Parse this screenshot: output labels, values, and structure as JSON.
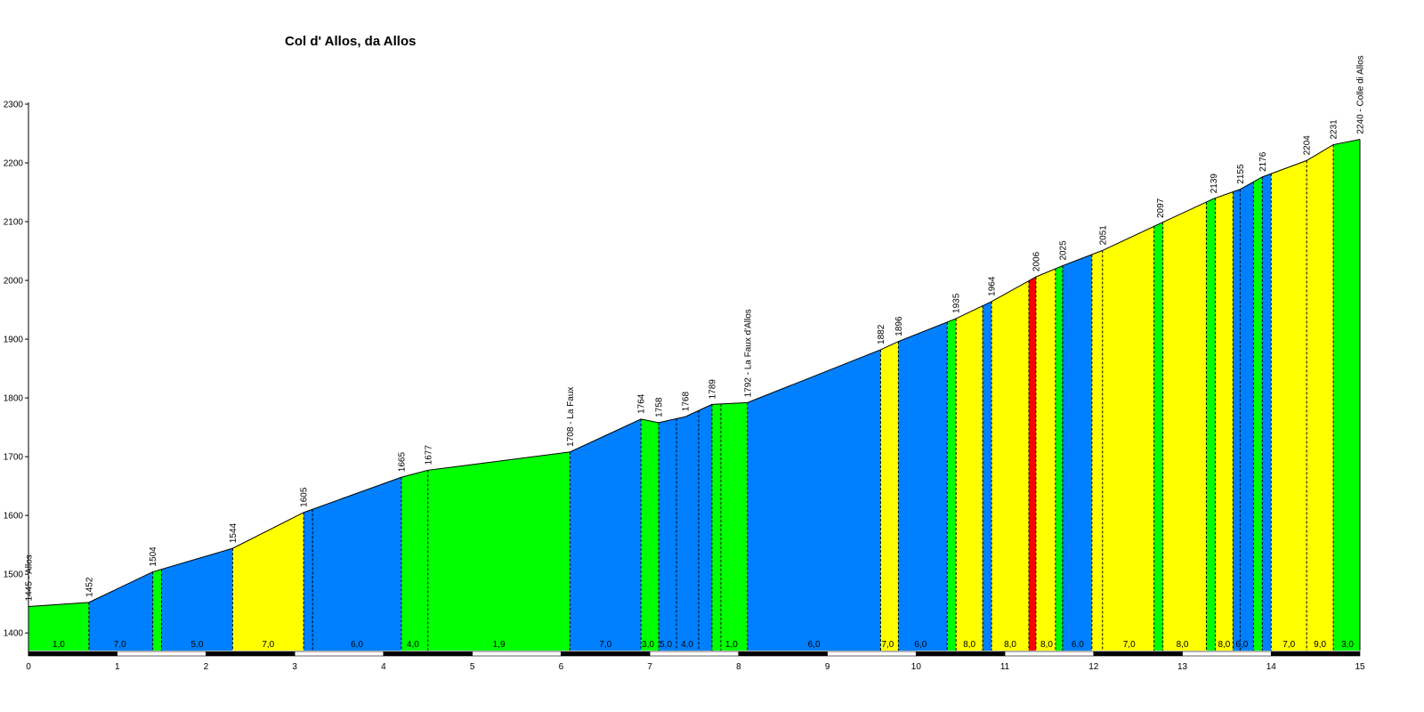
{
  "chart_data": {
    "type": "area",
    "title": "Col d' Allos, da Allos",
    "xlim": [
      0,
      15
    ],
    "ylim": [
      1370,
      2300
    ],
    "y_ticks": [
      1400,
      1500,
      1600,
      1700,
      1800,
      1900,
      2000,
      2100,
      2200,
      2300
    ],
    "x_ticks": [
      0,
      1,
      2,
      3,
      4,
      5,
      6,
      7,
      8,
      9,
      10,
      11,
      12,
      13,
      14,
      15
    ],
    "grid": false,
    "gradient_colors": {
      "low": "#00ff00",
      "medium": "#0080ff",
      "high": "#ffff00",
      "very_high": "#ff0000"
    },
    "profile_points": [
      {
        "km": 0.0,
        "alt": 1445
      },
      {
        "km": 0.68,
        "alt": 1452
      },
      {
        "km": 1.4,
        "alt": 1504
      },
      {
        "km": 2.3,
        "alt": 1544
      },
      {
        "km": 3.1,
        "alt": 1605
      },
      {
        "km": 4.2,
        "alt": 1665
      },
      {
        "km": 4.5,
        "alt": 1677
      },
      {
        "km": 6.1,
        "alt": 1708
      },
      {
        "km": 6.9,
        "alt": 1764
      },
      {
        "km": 7.1,
        "alt": 1758
      },
      {
        "km": 7.4,
        "alt": 1768
      },
      {
        "km": 7.7,
        "alt": 1789
      },
      {
        "km": 8.1,
        "alt": 1792
      },
      {
        "km": 9.6,
        "alt": 1882
      },
      {
        "km": 9.8,
        "alt": 1896
      },
      {
        "km": 10.45,
        "alt": 1935
      },
      {
        "km": 10.85,
        "alt": 1964
      },
      {
        "km": 11.35,
        "alt": 2006
      },
      {
        "km": 11.65,
        "alt": 2025
      },
      {
        "km": 12.1,
        "alt": 2051
      },
      {
        "km": 12.75,
        "alt": 2097
      },
      {
        "km": 13.35,
        "alt": 2139
      },
      {
        "km": 13.65,
        "alt": 2155
      },
      {
        "km": 13.9,
        "alt": 2176
      },
      {
        "km": 14.4,
        "alt": 2204
      },
      {
        "km": 14.7,
        "alt": 2231
      },
      {
        "km": 15.0,
        "alt": 2240
      }
    ],
    "point_labels": [
      {
        "km": 0.0,
        "text": "1445 - Allos"
      },
      {
        "km": 0.68,
        "text": "1452"
      },
      {
        "km": 1.4,
        "text": "1504"
      },
      {
        "km": 2.3,
        "text": "1544"
      },
      {
        "km": 3.1,
        "text": "1605"
      },
      {
        "km": 4.2,
        "text": "1665"
      },
      {
        "km": 4.5,
        "text": "1677"
      },
      {
        "km": 6.1,
        "text": "1708 - La Faux"
      },
      {
        "km": 6.9,
        "text": "1764"
      },
      {
        "km": 7.1,
        "text": "1758"
      },
      {
        "km": 7.4,
        "text": "1768"
      },
      {
        "km": 7.7,
        "text": "1789"
      },
      {
        "km": 8.1,
        "text": "1792 - La Faux d'Allos"
      },
      {
        "km": 9.6,
        "text": "1882"
      },
      {
        "km": 9.8,
        "text": "1896"
      },
      {
        "km": 10.45,
        "text": "1935"
      },
      {
        "km": 10.85,
        "text": "1964"
      },
      {
        "km": 11.35,
        "text": "2006"
      },
      {
        "km": 11.65,
        "text": "2025"
      },
      {
        "km": 12.1,
        "text": "2051"
      },
      {
        "km": 12.75,
        "text": "2097"
      },
      {
        "km": 13.35,
        "text": "2139"
      },
      {
        "km": 13.65,
        "text": "2155"
      },
      {
        "km": 13.9,
        "text": "2176"
      },
      {
        "km": 14.4,
        "text": "2204"
      },
      {
        "km": 14.7,
        "text": "2231"
      },
      {
        "km": 15.0,
        "text": "2240 - Colle di Allos"
      }
    ],
    "segments": [
      {
        "from": 0.0,
        "to": 0.68,
        "color": "green",
        "grade_label": "1,0",
        "grade_label_km": 0.34
      },
      {
        "from": 0.68,
        "to": 1.4,
        "color": "blue",
        "grade_label": "7,0",
        "grade_label_km": 1.03
      },
      {
        "from": 1.4,
        "to": 1.5,
        "color": "green",
        "grade_label": "",
        "grade_label_km": null
      },
      {
        "from": 1.5,
        "to": 2.3,
        "color": "blue",
        "grade_label": "5,0",
        "grade_label_km": 1.9
      },
      {
        "from": 2.3,
        "to": 3.1,
        "color": "yellow",
        "grade_label": "7,0",
        "grade_label_km": 2.7
      },
      {
        "from": 3.1,
        "to": 4.2,
        "color": "blue",
        "grade_label": "6,0",
        "grade_label_km": 3.7
      },
      {
        "from": 4.2,
        "to": 4.5,
        "color": "green",
        "grade_label": "4,0",
        "grade_label_km": 4.33
      },
      {
        "from": 4.5,
        "to": 6.1,
        "color": "green",
        "grade_label": "1,9",
        "grade_label_km": 5.3
      },
      {
        "from": 6.1,
        "to": 6.9,
        "color": "blue",
        "grade_label": "7,0",
        "grade_label_km": 6.5
      },
      {
        "from": 6.9,
        "to": 7.1,
        "color": "green",
        "grade_label": "3,0",
        "grade_label_km": 6.98
      },
      {
        "from": 7.1,
        "to": 7.3,
        "color": "blue",
        "grade_label": "5,0",
        "grade_label_km": 7.18
      },
      {
        "from": 7.3,
        "to": 7.7,
        "color": "blue",
        "grade_label": "4,0",
        "grade_label_km": 7.42
      },
      {
        "from": 7.7,
        "to": 8.1,
        "color": "green",
        "grade_label": "1,0",
        "grade_label_km": 7.92
      },
      {
        "from": 8.1,
        "to": 9.6,
        "color": "blue",
        "grade_label": "6,0",
        "grade_label_km": 8.85
      },
      {
        "from": 9.6,
        "to": 9.8,
        "color": "yellow",
        "grade_label": "7,0",
        "grade_label_km": 9.68
      },
      {
        "from": 9.8,
        "to": 10.35,
        "color": "blue",
        "grade_label": "6,0",
        "grade_label_km": 10.05
      },
      {
        "from": 10.35,
        "to": 10.45,
        "color": "green",
        "grade_label": "",
        "grade_label_km": null
      },
      {
        "from": 10.45,
        "to": 10.75,
        "color": "yellow",
        "grade_label": "8,0",
        "grade_label_km": 10.6
      },
      {
        "from": 10.75,
        "to": 10.85,
        "color": "blue",
        "grade_label": "",
        "grade_label_km": null
      },
      {
        "from": 10.85,
        "to": 11.27,
        "color": "yellow",
        "grade_label": "8,0",
        "grade_label_km": 11.06
      },
      {
        "from": 11.27,
        "to": 11.35,
        "color": "red",
        "grade_label": "",
        "grade_label_km": null
      },
      {
        "from": 11.35,
        "to": 11.57,
        "color": "yellow",
        "grade_label": "8,0",
        "grade_label_km": 11.47
      },
      {
        "from": 11.57,
        "to": 11.65,
        "color": "green",
        "grade_label": "",
        "grade_label_km": null
      },
      {
        "from": 11.65,
        "to": 11.98,
        "color": "blue",
        "grade_label": "6,0",
        "grade_label_km": 11.82
      },
      {
        "from": 11.98,
        "to": 12.68,
        "color": "yellow",
        "grade_label": "7,0",
        "grade_label_km": 12.4
      },
      {
        "from": 12.68,
        "to": 12.78,
        "color": "green",
        "grade_label": "",
        "grade_label_km": null
      },
      {
        "from": 12.78,
        "to": 13.27,
        "color": "yellow",
        "grade_label": "8,0",
        "grade_label_km": 13.0
      },
      {
        "from": 13.27,
        "to": 13.37,
        "color": "green",
        "grade_label": "",
        "grade_label_km": null
      },
      {
        "from": 13.37,
        "to": 13.57,
        "color": "yellow",
        "grade_label": "8,0",
        "grade_label_km": 13.47
      },
      {
        "from": 13.57,
        "to": 13.8,
        "color": "blue",
        "grade_label": "6,0",
        "grade_label_km": 13.67
      },
      {
        "from": 13.8,
        "to": 13.9,
        "color": "green",
        "grade_label": "",
        "grade_label_km": null
      },
      {
        "from": 13.9,
        "to": 14.0,
        "color": "blue",
        "grade_label": "",
        "grade_label_km": null
      },
      {
        "from": 14.0,
        "to": 14.4,
        "color": "yellow",
        "grade_label": "7,0",
        "grade_label_km": 14.2
      },
      {
        "from": 14.4,
        "to": 14.7,
        "color": "yellow",
        "grade_label": "9,0",
        "grade_label_km": 14.55
      },
      {
        "from": 14.7,
        "to": 15.0,
        "color": "green",
        "grade_label": "3,0",
        "grade_label_km": 14.86
      }
    ],
    "dashed_markers_km": [
      0.68,
      1.4,
      1.5,
      2.3,
      3.1,
      3.2,
      4.2,
      4.5,
      6.1,
      6.9,
      7.1,
      7.3,
      7.55,
      7.7,
      7.8,
      8.1,
      9.6,
      9.8,
      10.35,
      10.45,
      10.75,
      10.85,
      11.27,
      11.35,
      11.57,
      11.65,
      11.98,
      12.1,
      12.68,
      12.78,
      13.27,
      13.37,
      13.57,
      13.65,
      13.8,
      13.9,
      14.0,
      14.4,
      14.7
    ]
  }
}
